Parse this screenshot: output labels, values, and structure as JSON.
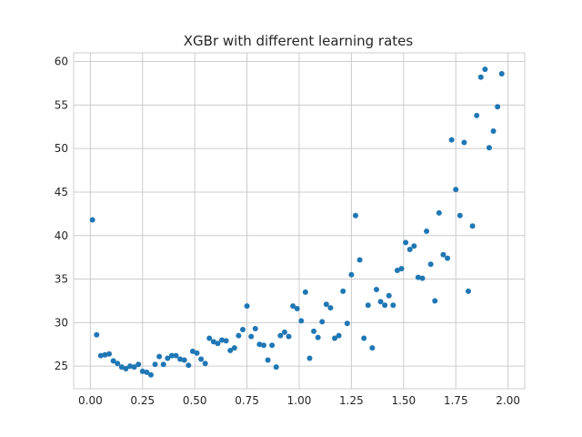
{
  "chart_data": {
    "type": "scatter",
    "title": "XGBr with different learning rates",
    "xlabel": "",
    "ylabel": "",
    "xlim": [
      -0.08,
      2.08
    ],
    "ylim": [
      22.4,
      61.0
    ],
    "xticks": [
      0.0,
      0.25,
      0.5,
      0.75,
      1.0,
      1.25,
      1.5,
      1.75,
      2.0
    ],
    "xtick_labels": [
      "0.00",
      "0.25",
      "0.50",
      "0.75",
      "1.00",
      "1.25",
      "1.50",
      "1.75",
      "2.00"
    ],
    "yticks": [
      25,
      30,
      35,
      40,
      45,
      50,
      55,
      60
    ],
    "ytick_labels": [
      "25",
      "30",
      "35",
      "40",
      "45",
      "50",
      "55",
      "60"
    ],
    "grid": true,
    "legend": "none",
    "colors": {
      "points": "#1f77b4",
      "grid": "#cccccc",
      "frame": "#cccccc",
      "text": "#262626"
    },
    "series": [
      {
        "points": [
          [
            0.01,
            41.8
          ],
          [
            0.03,
            28.6
          ],
          [
            0.05,
            26.2
          ],
          [
            0.07,
            26.3
          ],
          [
            0.09,
            26.4
          ],
          [
            0.11,
            25.6
          ],
          [
            0.13,
            25.3
          ],
          [
            0.15,
            24.9
          ],
          [
            0.17,
            24.7
          ],
          [
            0.19,
            25.0
          ],
          [
            0.21,
            24.9
          ],
          [
            0.23,
            25.2
          ],
          [
            0.25,
            24.4
          ],
          [
            0.27,
            24.3
          ],
          [
            0.29,
            24.0
          ],
          [
            0.31,
            25.2
          ],
          [
            0.33,
            26.1
          ],
          [
            0.35,
            25.2
          ],
          [
            0.37,
            25.9
          ],
          [
            0.39,
            26.2
          ],
          [
            0.41,
            26.2
          ],
          [
            0.43,
            25.8
          ],
          [
            0.45,
            25.7
          ],
          [
            0.47,
            25.1
          ],
          [
            0.49,
            26.7
          ],
          [
            0.51,
            26.5
          ],
          [
            0.53,
            25.8
          ],
          [
            0.55,
            25.3
          ],
          [
            0.57,
            28.2
          ],
          [
            0.59,
            27.8
          ],
          [
            0.61,
            27.6
          ],
          [
            0.63,
            28.0
          ],
          [
            0.65,
            27.9
          ],
          [
            0.67,
            26.8
          ],
          [
            0.69,
            27.1
          ],
          [
            0.71,
            28.5
          ],
          [
            0.73,
            29.2
          ],
          [
            0.75,
            31.9
          ],
          [
            0.77,
            28.4
          ],
          [
            0.79,
            29.3
          ],
          [
            0.81,
            27.5
          ],
          [
            0.83,
            27.4
          ],
          [
            0.85,
            25.7
          ],
          [
            0.87,
            27.4
          ],
          [
            0.89,
            24.9
          ],
          [
            0.91,
            28.5
          ],
          [
            0.93,
            28.9
          ],
          [
            0.95,
            28.4
          ],
          [
            0.97,
            31.9
          ],
          [
            0.99,
            31.6
          ],
          [
            1.01,
            30.2
          ],
          [
            1.03,
            33.5
          ],
          [
            1.05,
            25.9
          ],
          [
            1.07,
            29.0
          ],
          [
            1.09,
            28.3
          ],
          [
            1.11,
            30.1
          ],
          [
            1.13,
            32.1
          ],
          [
            1.15,
            31.7
          ],
          [
            1.17,
            28.2
          ],
          [
            1.19,
            28.5
          ],
          [
            1.21,
            33.6
          ],
          [
            1.23,
            29.9
          ],
          [
            1.25,
            35.5
          ],
          [
            1.27,
            42.3
          ],
          [
            1.29,
            37.2
          ],
          [
            1.31,
            28.2
          ],
          [
            1.33,
            32.0
          ],
          [
            1.35,
            27.1
          ],
          [
            1.37,
            33.8
          ],
          [
            1.39,
            32.4
          ],
          [
            1.41,
            32.0
          ],
          [
            1.43,
            33.1
          ],
          [
            1.45,
            32.0
          ],
          [
            1.47,
            36.0
          ],
          [
            1.49,
            36.2
          ],
          [
            1.51,
            39.2
          ],
          [
            1.53,
            38.4
          ],
          [
            1.55,
            38.8
          ],
          [
            1.57,
            35.2
          ],
          [
            1.59,
            35.1
          ],
          [
            1.61,
            40.5
          ],
          [
            1.63,
            36.7
          ],
          [
            1.65,
            32.5
          ],
          [
            1.67,
            42.6
          ],
          [
            1.69,
            37.8
          ],
          [
            1.71,
            37.4
          ],
          [
            1.73,
            51.0
          ],
          [
            1.75,
            45.3
          ],
          [
            1.77,
            42.3
          ],
          [
            1.79,
            50.7
          ],
          [
            1.81,
            33.6
          ],
          [
            1.83,
            41.1
          ],
          [
            1.85,
            53.8
          ],
          [
            1.87,
            58.2
          ],
          [
            1.89,
            59.1
          ],
          [
            1.91,
            50.1
          ],
          [
            1.93,
            52.0
          ],
          [
            1.95,
            54.8
          ],
          [
            1.97,
            58.6
          ]
        ]
      }
    ]
  }
}
